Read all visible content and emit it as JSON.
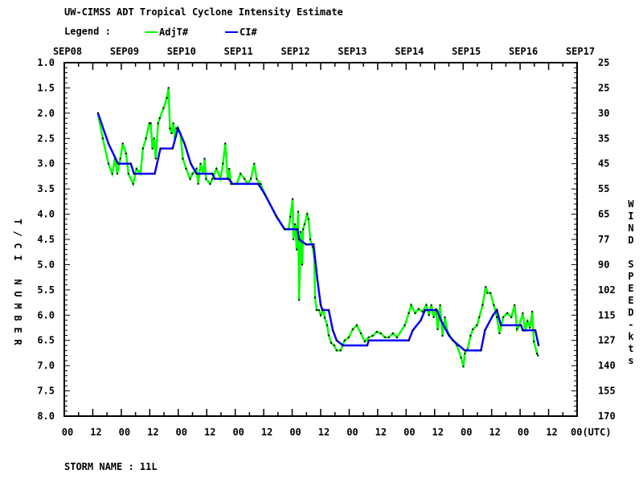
{
  "chart_data": {
    "type": "line",
    "title": "UW-CIMSS ADT Tropical Cyclone Intensity Estimate",
    "legend_label": "Legend :",
    "legend_placement": "top-left",
    "ylabel": "T/CI NUMBER",
    "y2label": "WIND SPEED-kts",
    "ylim": [
      1.0,
      8.0
    ],
    "y_ticks": [
      "1.0",
      "1.5",
      "2.0",
      "2.5",
      "3.0",
      "3.5",
      "4.0",
      "4.5",
      "5.0",
      "5.5",
      "6.0",
      "6.5",
      "7.0",
      "7.5",
      "8.0"
    ],
    "y2_ticks": [
      "25",
      "25",
      "30",
      "35",
      "45",
      "55",
      "65",
      "77",
      "90",
      "102",
      "115",
      "127",
      "140",
      "155",
      "170"
    ],
    "x_unit": "hours since SEP08 00UTC",
    "xlim": [
      0,
      216
    ],
    "x_top_labels": [
      "SEP08",
      "SEP09",
      "SEP10",
      "SEP11",
      "SEP12",
      "SEP13",
      "SEP14",
      "SEP15",
      "SEP16",
      "SEP17"
    ],
    "x_bottom_labels": [
      "00",
      "12",
      "00",
      "12",
      "00",
      "12",
      "00",
      "12",
      "00",
      "12",
      "00",
      "12",
      "00",
      "12",
      "00",
      "12",
      "00",
      "12",
      "00(UTC)"
    ],
    "series": [
      {
        "name": "AdjT#",
        "color": "#00ff00",
        "points": [
          [
            14.2,
            2.0
          ],
          [
            16.2,
            2.5
          ],
          [
            18.6,
            3.0
          ],
          [
            20.2,
            3.2
          ],
          [
            21.3,
            2.9
          ],
          [
            22.3,
            3.2
          ],
          [
            23.6,
            2.9
          ],
          [
            24.6,
            2.6
          ],
          [
            26,
            2.8
          ],
          [
            27,
            3.2
          ],
          [
            29,
            3.4
          ],
          [
            30.4,
            3.1
          ],
          [
            32.1,
            3.2
          ],
          [
            33.1,
            2.7
          ],
          [
            34.4,
            2.5
          ],
          [
            35.8,
            2.2
          ],
          [
            36.4,
            2.2
          ],
          [
            37.1,
            2.7
          ],
          [
            37.8,
            2.5
          ],
          [
            38.5,
            2.9
          ],
          [
            39.5,
            2.2
          ],
          [
            40.2,
            2.1
          ],
          [
            41.8,
            1.9
          ],
          [
            43.2,
            1.7
          ],
          [
            43.9,
            1.5
          ],
          [
            44.5,
            2.3
          ],
          [
            45.2,
            2.4
          ],
          [
            45.9,
            2.2
          ],
          [
            46.6,
            2.5
          ],
          [
            47.2,
            2.3
          ],
          [
            48.9,
            2.4
          ],
          [
            49.9,
            2.9
          ],
          [
            51.3,
            3.1
          ],
          [
            53,
            3.3
          ],
          [
            54,
            3.2
          ],
          [
            55.7,
            3.1
          ],
          [
            56.4,
            3.4
          ],
          [
            57.4,
            3.0
          ],
          [
            58.4,
            3.2
          ],
          [
            59.1,
            2.9
          ],
          [
            59.7,
            3.3
          ],
          [
            61.4,
            3.4
          ],
          [
            62.4,
            3.3
          ],
          [
            64.1,
            3.1
          ],
          [
            65.8,
            3.3
          ],
          [
            66.8,
            3.0
          ],
          [
            67.8,
            2.6
          ],
          [
            68.8,
            3.3
          ],
          [
            69.5,
            3.1
          ],
          [
            70.2,
            3.4
          ],
          [
            72.6,
            3.4
          ],
          [
            74.2,
            3.2
          ],
          [
            75.9,
            3.3
          ],
          [
            77.3,
            3.4
          ],
          [
            78.6,
            3.3
          ],
          [
            80,
            3.0
          ],
          [
            81,
            3.3
          ],
          [
            82.7,
            3.4
          ],
          [
            84.4,
            3.6
          ],
          [
            89.4,
            4.05
          ],
          [
            92.8,
            4.3
          ],
          [
            94.5,
            4.3
          ],
          [
            95.2,
            4.05
          ],
          [
            96.2,
            3.7
          ],
          [
            96.5,
            4.5
          ],
          [
            97.2,
            4.2
          ],
          [
            97.9,
            4.7
          ],
          [
            98.5,
            3.95
          ],
          [
            98.9,
            5.7
          ],
          [
            99.6,
            4.35
          ],
          [
            100.2,
            5.0
          ],
          [
            100.6,
            4.3
          ],
          [
            101.2,
            4.2
          ],
          [
            102.3,
            4.0
          ],
          [
            102.9,
            4.1
          ],
          [
            103.6,
            4.5
          ],
          [
            104.6,
            4.65
          ],
          [
            105.3,
            4.85
          ],
          [
            105.6,
            5.65
          ],
          [
            106.3,
            5.9
          ],
          [
            107.3,
            5.9
          ],
          [
            108,
            6.0
          ],
          [
            109,
            5.9
          ],
          [
            109.7,
            6.05
          ],
          [
            110.7,
            6.2
          ],
          [
            111.4,
            6.4
          ],
          [
            112.4,
            6.55
          ],
          [
            113.7,
            6.6
          ],
          [
            114.7,
            6.7
          ],
          [
            116.4,
            6.7
          ],
          [
            118.1,
            6.5
          ],
          [
            119.8,
            6.44
          ],
          [
            121.5,
            6.28
          ],
          [
            123.2,
            6.2
          ],
          [
            124.9,
            6.36
          ],
          [
            126.6,
            6.52
          ],
          [
            128.2,
            6.44
          ],
          [
            129.9,
            6.41
          ],
          [
            131.6,
            6.33
          ],
          [
            133.3,
            6.36
          ],
          [
            135,
            6.44
          ],
          [
            136.7,
            6.44
          ],
          [
            138.4,
            6.36
          ],
          [
            140.1,
            6.44
          ],
          [
            143.4,
            6.2
          ],
          [
            145.1,
            5.96
          ],
          [
            146.1,
            5.8
          ],
          [
            147.8,
            5.96
          ],
          [
            149.2,
            5.88
          ],
          [
            150.9,
            5.93
          ],
          [
            152.5,
            5.8
          ],
          [
            153.6,
            6.0
          ],
          [
            154.6,
            5.8
          ],
          [
            155.6,
            6.04
          ],
          [
            156.6,
            5.88
          ],
          [
            157.3,
            6.28
          ],
          [
            158.3,
            5.8
          ],
          [
            159.3,
            6.41
          ],
          [
            160.3,
            6.04
          ],
          [
            161.3,
            6.31
          ],
          [
            162.7,
            6.44
          ],
          [
            163.7,
            6.49
          ],
          [
            165.4,
            6.6
          ],
          [
            167.1,
            6.84
          ],
          [
            168.1,
            7.02
          ],
          [
            168.7,
            6.76
          ],
          [
            169.8,
            6.68
          ],
          [
            171.1,
            6.41
          ],
          [
            172.1,
            6.28
          ],
          [
            173.8,
            6.2
          ],
          [
            174.8,
            6.04
          ],
          [
            176.2,
            5.8
          ],
          [
            177.5,
            5.44
          ],
          [
            178.2,
            5.56
          ],
          [
            179.5,
            5.56
          ],
          [
            180.9,
            5.8
          ],
          [
            182.2,
            6.04
          ],
          [
            183.3,
            6.36
          ],
          [
            184.9,
            6.04
          ],
          [
            186.6,
            5.96
          ],
          [
            188.3,
            6.04
          ],
          [
            189.7,
            5.8
          ],
          [
            190.7,
            6.28
          ],
          [
            191.7,
            6.2
          ],
          [
            193.1,
            5.96
          ],
          [
            194.1,
            6.31
          ],
          [
            195.1,
            6.12
          ],
          [
            196.1,
            6.25
          ],
          [
            197.1,
            5.93
          ],
          [
            197.8,
            6.52
          ],
          [
            199.1,
            6.76
          ],
          [
            199.5,
            6.8
          ]
        ]
      },
      {
        "name": "CI#",
        "color": "#0000ff",
        "points": [
          [
            14.2,
            2.0
          ],
          [
            18.6,
            2.6
          ],
          [
            22.6,
            3.0
          ],
          [
            28,
            3.0
          ],
          [
            29.4,
            3.2
          ],
          [
            38.1,
            3.2
          ],
          [
            40.5,
            2.7
          ],
          [
            45.6,
            2.7
          ],
          [
            47.9,
            2.3
          ],
          [
            50.6,
            2.6
          ],
          [
            53.3,
            3.0
          ],
          [
            55.7,
            3.2
          ],
          [
            62.4,
            3.2
          ],
          [
            63.4,
            3.3
          ],
          [
            69.2,
            3.3
          ],
          [
            70.9,
            3.4
          ],
          [
            81.7,
            3.4
          ],
          [
            84.4,
            3.6
          ],
          [
            89.4,
            4.05
          ],
          [
            92.8,
            4.3
          ],
          [
            98.2,
            4.3
          ],
          [
            98.9,
            4.5
          ],
          [
            101.9,
            4.6
          ],
          [
            105,
            4.6
          ],
          [
            106.6,
            5.3
          ],
          [
            108,
            5.8
          ],
          [
            108.7,
            5.9
          ],
          [
            111.4,
            5.9
          ],
          [
            113.1,
            6.3
          ],
          [
            114.7,
            6.5
          ],
          [
            117.4,
            6.6
          ],
          [
            127.6,
            6.6
          ],
          [
            128.2,
            6.5
          ],
          [
            145.1,
            6.5
          ],
          [
            146.8,
            6.3
          ],
          [
            150.2,
            6.1
          ],
          [
            151.9,
            5.9
          ],
          [
            156.9,
            5.9
          ],
          [
            158.6,
            6.1
          ],
          [
            162,
            6.4
          ],
          [
            163.7,
            6.5
          ],
          [
            168.7,
            6.7
          ],
          [
            175.5,
            6.7
          ],
          [
            177.2,
            6.3
          ],
          [
            180.6,
            6.0
          ],
          [
            182.2,
            5.9
          ],
          [
            183.9,
            6.2
          ],
          [
            192.4,
            6.2
          ],
          [
            193.1,
            6.3
          ],
          [
            198.4,
            6.3
          ],
          [
            199.8,
            6.6
          ]
        ]
      }
    ]
  },
  "footer": {
    "storm_name": "STORM NAME : 11L"
  }
}
